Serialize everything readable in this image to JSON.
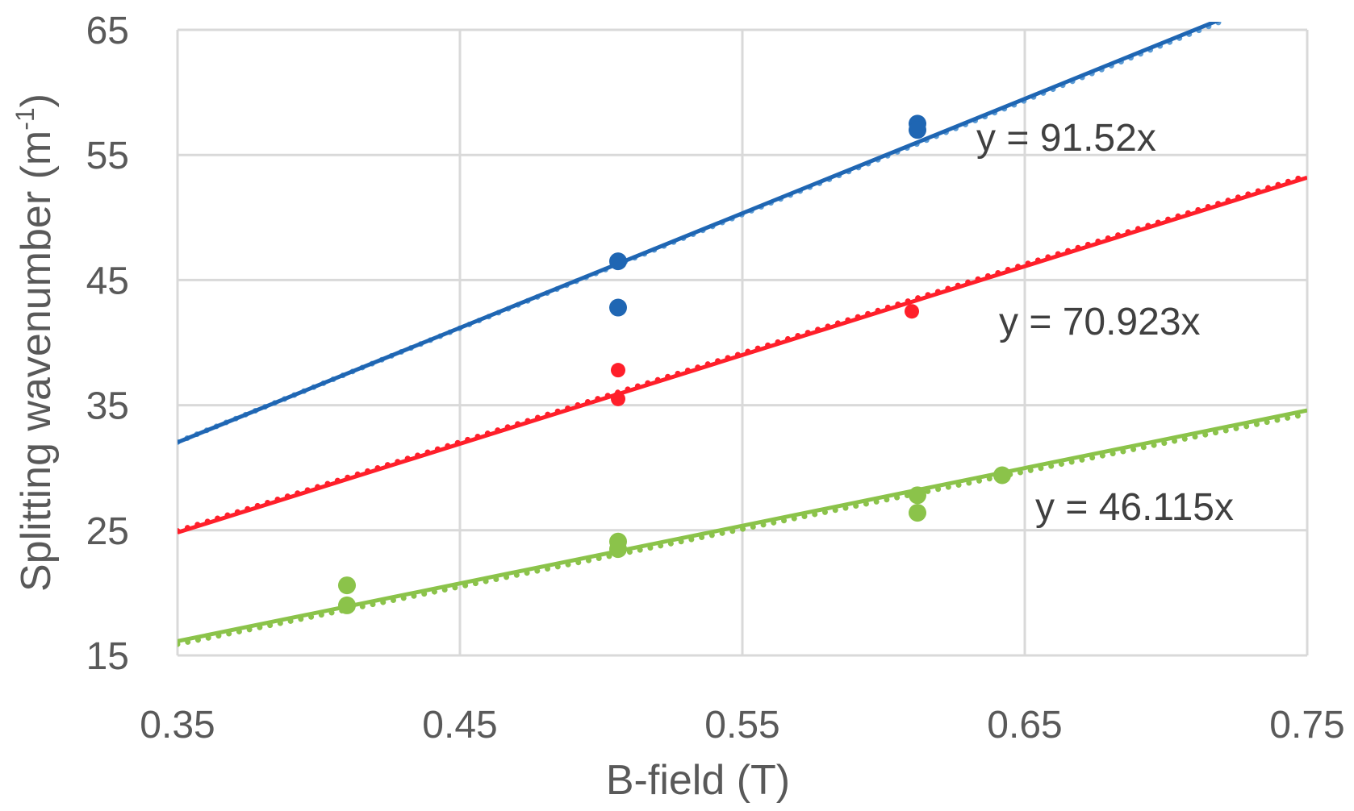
{
  "chart_data": {
    "type": "scatter",
    "xlabel": "B-field (T)",
    "ylabel": "Splitting wavenumber (m",
    "ylabel_sup": "-1",
    "ylabel_close": ")",
    "xlim": [
      0.35,
      0.75
    ],
    "ylim": [
      15,
      65
    ],
    "x_ticks": [
      "0.35",
      "0.45",
      "0.55",
      "0.65",
      "0.75"
    ],
    "y_ticks": [
      "15",
      "25",
      "35",
      "45",
      "55",
      "65"
    ],
    "grid": true,
    "series": [
      {
        "color": "#1f66b3",
        "dotted_color": "#5b9bd5",
        "marker_radius": 11,
        "points": [
          [
            0.506,
            46.5
          ],
          [
            0.506,
            42.8
          ],
          [
            0.612,
            57.5
          ],
          [
            0.612,
            57.0
          ]
        ],
        "fit": {
          "label": "y = 91.52x",
          "slope": 91.52
        },
        "fit_alt": {
          "slope": 91.0,
          "intercept": 0.2
        }
      },
      {
        "color": "#ff1f2a",
        "dotted_color": "#ff1f2a",
        "marker_radius": 9,
        "points": [
          [
            0.506,
            37.8
          ],
          [
            0.506,
            35.5
          ],
          [
            0.61,
            42.5
          ]
        ],
        "fit": {
          "label": "y = 70.923x",
          "slope": 70.923
        },
        "fit_alt": {
          "slope": 71.0,
          "intercept": 0.1
        }
      },
      {
        "color": "#8bc34a",
        "dotted_color": "#8bc34a",
        "marker_radius": 11,
        "points": [
          [
            0.41,
            20.6
          ],
          [
            0.41,
            19.0
          ],
          [
            0.506,
            24.1
          ],
          [
            0.506,
            23.5
          ],
          [
            0.612,
            27.8
          ],
          [
            0.612,
            26.4
          ],
          [
            0.642,
            29.4
          ]
        ],
        "fit": {
          "label": "y = 46.115x",
          "slope": 46.115
        },
        "fit_alt": {
          "slope": 46.0,
          "intercept": -0.2
        }
      }
    ]
  }
}
